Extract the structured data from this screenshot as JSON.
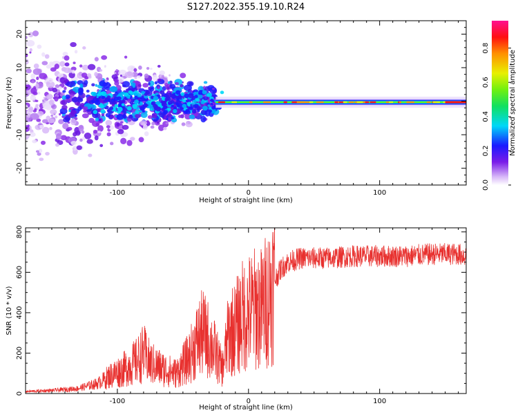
{
  "title": "S127.2022.355.19.10.R24",
  "chart_data": [
    {
      "type": "heatmap",
      "xlabel": "Height of straight line (km)",
      "ylabel": "Frequency (Hz)",
      "xlim": [
        -170,
        166
      ],
      "ylim": [
        -25,
        24
      ],
      "xticks": [
        -100,
        0,
        100
      ],
      "xtick_labels": [
        "-100",
        "0",
        "100"
      ],
      "yticks": [
        -20,
        -10,
        0,
        10,
        20
      ],
      "ytick_labels": [
        "-20",
        "-10",
        "0",
        "10",
        "20"
      ],
      "colorbar": {
        "label": "Normalized spectral amplitude",
        "range": [
          0,
          0.96
        ],
        "ticks": [
          0.0,
          0.2,
          0.4,
          0.6,
          0.8
        ],
        "tick_labels": [
          "0.0",
          "0.2",
          "0.4",
          "0.6",
          "0.8"
        ],
        "colormap": "rainbow (white-violet-blue-cyan-green-yellow-red-magenta)"
      },
      "description_values": {
        "spread_region_x": [
          -170,
          -25
        ],
        "narrow_line_region_x": [
          -25,
          166
        ],
        "line_frequency_hz": -0.3
      }
    },
    {
      "type": "line",
      "xlabel": "Height of straight line (km)",
      "ylabel": "SNR (10 * v/v)",
      "xlim": [
        -170,
        166
      ],
      "ylim": [
        0,
        820
      ],
      "xticks": [
        -100,
        0,
        100
      ],
      "xtick_labels": [
        "-100",
        "0",
        "100"
      ],
      "yticks": [
        0,
        200,
        400,
        600,
        800
      ],
      "ytick_labels": [
        "0",
        "200",
        "400",
        "600",
        "800"
      ],
      "series": [
        {
          "color": "#e8302e",
          "x": [
            -170,
            -150,
            -130,
            -115,
            -105,
            -95,
            -85,
            -80,
            -75,
            -65,
            -55,
            -45,
            -40,
            -35,
            -30,
            -25,
            -20,
            -15,
            -10,
            -5,
            0,
            5,
            10,
            15,
            20,
            25,
            30,
            40,
            50,
            60,
            80,
            100,
            120,
            140,
            160,
            166
          ],
          "y": [
            10,
            15,
            25,
            50,
            90,
            120,
            160,
            200,
            150,
            120,
            100,
            180,
            250,
            300,
            260,
            200,
            120,
            300,
            320,
            380,
            400,
            420,
            420,
            480,
            560,
            620,
            650,
            670,
            670,
            670,
            680,
            680,
            680,
            690,
            690,
            680
          ]
        }
      ]
    }
  ]
}
